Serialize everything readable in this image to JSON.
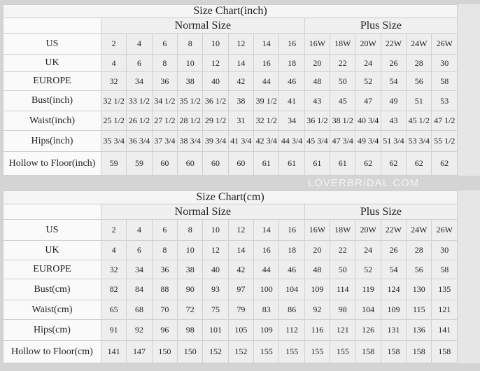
{
  "tables": [
    {
      "title": "Size Chart(inch)",
      "normal_label": "Normal Size",
      "plus_label": "Plus Size",
      "rows": [
        {
          "label": "US",
          "values": [
            "2",
            "4",
            "6",
            "8",
            "10",
            "12",
            "14",
            "16",
            "16W",
            "18W",
            "20W",
            "22W",
            "24W",
            "26W"
          ]
        },
        {
          "label": "UK",
          "values": [
            "4",
            "6",
            "8",
            "10",
            "12",
            "14",
            "16",
            "18",
            "20",
            "22",
            "24",
            "26",
            "28",
            "30"
          ]
        },
        {
          "label": "EUROPE",
          "values": [
            "32",
            "34",
            "36",
            "38",
            "40",
            "42",
            "44",
            "46",
            "48",
            "50",
            "52",
            "54",
            "56",
            "58"
          ]
        },
        {
          "label": "Bust(inch)",
          "values": [
            "32 1/2",
            "33 1/2",
            "34 1/2",
            "35 1/2",
            "36 1/2",
            "38",
            "39 1/2",
            "41",
            "43",
            "45",
            "47",
            "49",
            "51",
            "53"
          ]
        },
        {
          "label": "Waist(inch)",
          "values": [
            "25 1/2",
            "26 1/2",
            "27 1/2",
            "28 1/2",
            "29 1/2",
            "31",
            "32 1/2",
            "34",
            "36 1/2",
            "38 1/2",
            "40 3/4",
            "43",
            "45 1/2",
            "47 1/2"
          ]
        },
        {
          "label": "Hips(inch)",
          "values": [
            "35 3/4",
            "36 3/4",
            "37 3/4",
            "38 3/4",
            "39 3/4",
            "41 3/4",
            "42 3/4",
            "44 3/4",
            "45 3/4",
            "47 3/4",
            "49 3/4",
            "51 3/4",
            "53 3/4",
            "55 1/2"
          ]
        },
        {
          "label": "Hollow to Floor(inch)",
          "values": [
            "59",
            "59",
            "60",
            "60",
            "60",
            "60",
            "61",
            "61",
            "61",
            "61",
            "62",
            "62",
            "62",
            "62"
          ]
        }
      ]
    },
    {
      "title": "Size Chart(cm)",
      "normal_label": "Normal Size",
      "plus_label": "Plus Size",
      "rows": [
        {
          "label": "US",
          "values": [
            "2",
            "4",
            "6",
            "8",
            "10",
            "12",
            "14",
            "16",
            "16W",
            "18W",
            "20W",
            "22W",
            "24W",
            "26W"
          ]
        },
        {
          "label": "UK",
          "values": [
            "4",
            "6",
            "8",
            "10",
            "12",
            "14",
            "16",
            "18",
            "20",
            "22",
            "24",
            "26",
            "28",
            "30"
          ]
        },
        {
          "label": "EUROPE",
          "values": [
            "32",
            "34",
            "36",
            "38",
            "40",
            "42",
            "44",
            "46",
            "48",
            "50",
            "52",
            "54",
            "56",
            "58"
          ]
        },
        {
          "label": "Bust(cm)",
          "values": [
            "82",
            "84",
            "88",
            "90",
            "93",
            "97",
            "100",
            "104",
            "109",
            "114",
            "119",
            "124",
            "130",
            "135"
          ]
        },
        {
          "label": "Waist(cm)",
          "values": [
            "65",
            "68",
            "70",
            "72",
            "75",
            "79",
            "83",
            "86",
            "92",
            "98",
            "104",
            "109",
            "115",
            "121"
          ]
        },
        {
          "label": "Hips(cm)",
          "values": [
            "91",
            "92",
            "96",
            "98",
            "101",
            "105",
            "109",
            "112",
            "116",
            "121",
            "126",
            "131",
            "136",
            "141"
          ]
        },
        {
          "label": "Hollow to Floor(cm)",
          "values": [
            "141",
            "147",
            "150",
            "150",
            "152",
            "152",
            "155",
            "155",
            "155",
            "155",
            "158",
            "158",
            "158",
            "158"
          ]
        }
      ]
    }
  ],
  "watermark": "LOVERBRIDAL.COM"
}
